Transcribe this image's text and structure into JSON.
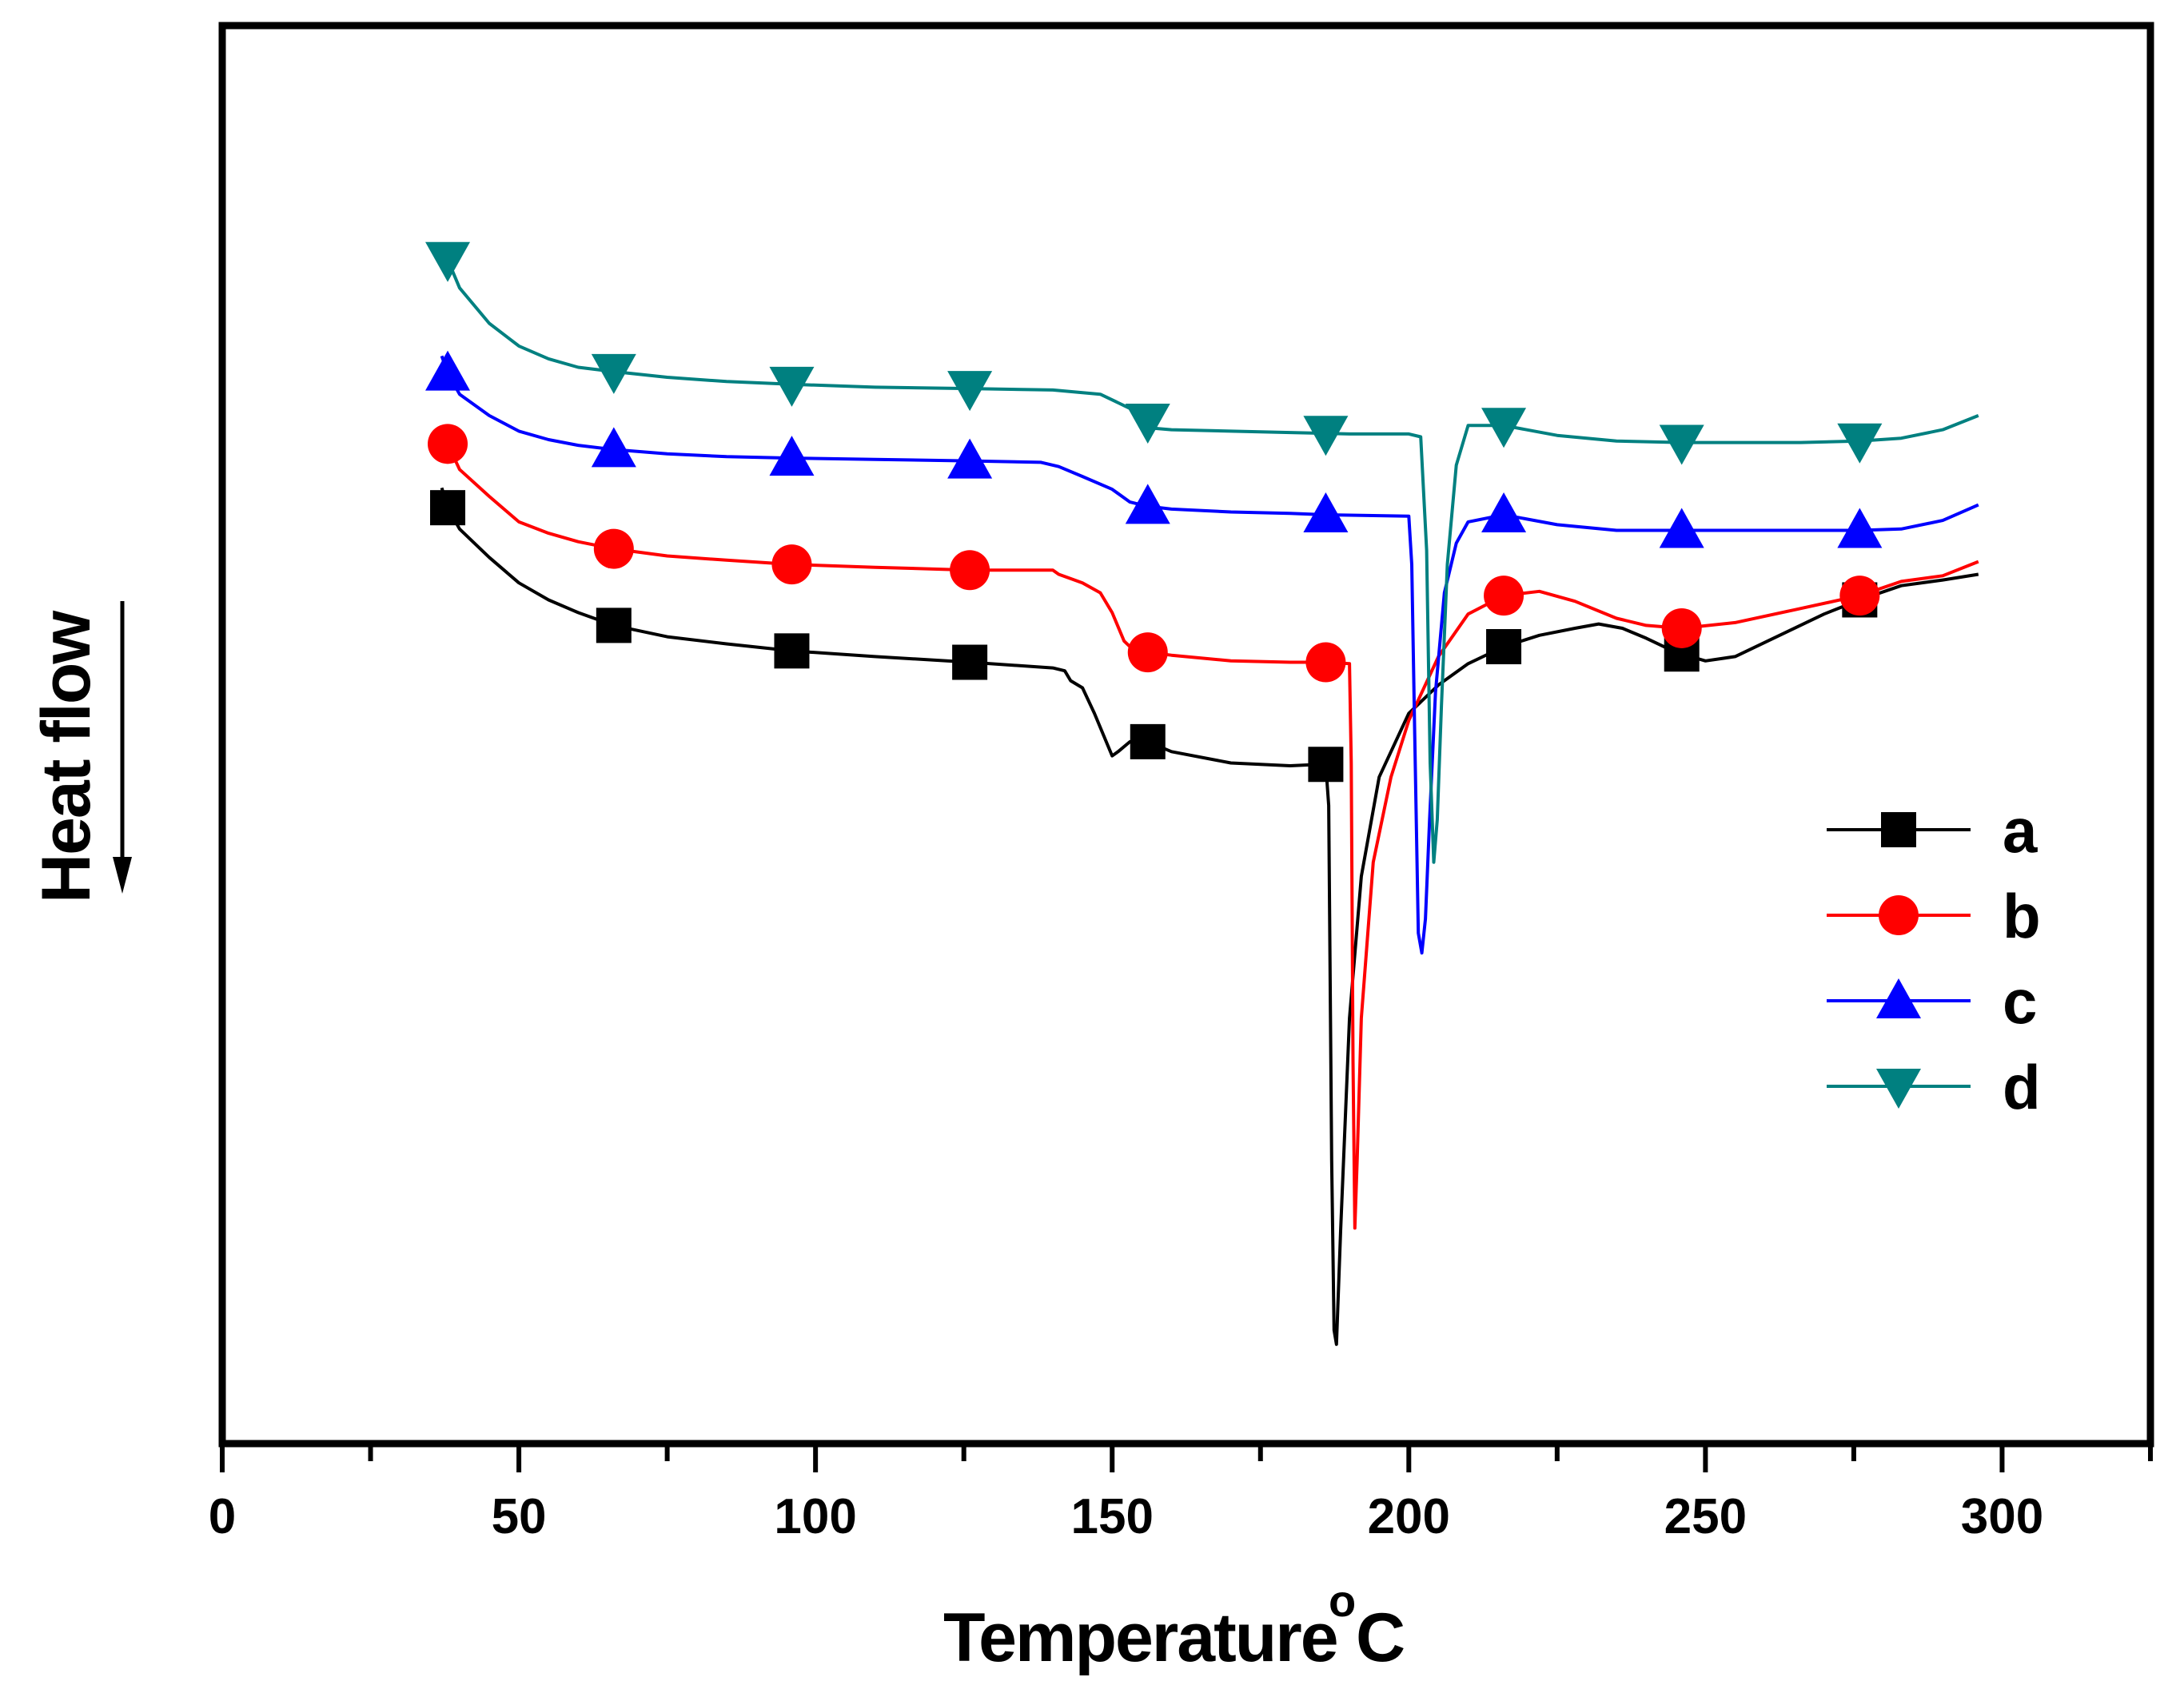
{
  "chart_data": {
    "type": "line",
    "title": "",
    "xlabel": "Temperature",
    "xlabel_unit": "°C",
    "xlabel_unit_sup": "o",
    "xlabel_unit_main": "C",
    "ylabel": "Heat flow",
    "ylabel_arrow": "down",
    "xlim": [
      0,
      325
    ],
    "ylim": [
      0,
      100
    ],
    "y_ticks_shown": false,
    "x_ticks": [
      0,
      50,
      100,
      150,
      200,
      250,
      300
    ],
    "x_tick_labels": [
      "0",
      "50",
      "100",
      "150",
      "200",
      "250",
      "300"
    ],
    "x_minor_ticks": [
      25,
      75,
      125,
      175,
      225,
      275,
      325
    ],
    "grid": false,
    "legend_position": "right",
    "series": [
      {
        "name": "a",
        "color": "#000000",
        "marker": "square",
        "points": [
          [
            37,
            67.4
          ],
          [
            38,
            66
          ],
          [
            40,
            64.5
          ],
          [
            45,
            62.5
          ],
          [
            50,
            60.7
          ],
          [
            55,
            59.5
          ],
          [
            60,
            58.6
          ],
          [
            66,
            57.7
          ],
          [
            75,
            56.9
          ],
          [
            85,
            56.4
          ],
          [
            96,
            55.9
          ],
          [
            110,
            55.5
          ],
          [
            126,
            55.1
          ],
          [
            140,
            54.7
          ],
          [
            142,
            54.5
          ],
          [
            143,
            53.8
          ],
          [
            145,
            53.3
          ],
          [
            147,
            51.5
          ],
          [
            149,
            49.5
          ],
          [
            150,
            48.5
          ],
          [
            151,
            48.8
          ],
          [
            153,
            49.5
          ],
          [
            156,
            49.5
          ],
          [
            160,
            48.8
          ],
          [
            170,
            48
          ],
          [
            180,
            47.8
          ],
          [
            185,
            47.9
          ],
          [
            186,
            47.9
          ],
          [
            186.5,
            45
          ],
          [
            187,
            20
          ],
          [
            187.4,
            8
          ],
          [
            187.8,
            7
          ],
          [
            188.5,
            15
          ],
          [
            190,
            30
          ],
          [
            192,
            40
          ],
          [
            195,
            47
          ],
          [
            200,
            51.5
          ],
          [
            205,
            53.5
          ],
          [
            210,
            55
          ],
          [
            216,
            56.2
          ],
          [
            222,
            57
          ],
          [
            228,
            57.5
          ],
          [
            232,
            57.8
          ],
          [
            236,
            57.5
          ],
          [
            240,
            56.8
          ],
          [
            245,
            55.8
          ],
          [
            250,
            55.2
          ],
          [
            255,
            55.5
          ],
          [
            260,
            56.5
          ],
          [
            270,
            58.5
          ],
          [
            276,
            59.5
          ],
          [
            283,
            60.5
          ],
          [
            290,
            60.9
          ],
          [
            296,
            61.3
          ]
        ],
        "marker_x": [
          38,
          66,
          96,
          126,
          156,
          186,
          216,
          246,
          276
        ]
      },
      {
        "name": "b",
        "color": "#ff0000",
        "marker": "circle",
        "points": [
          [
            37,
            71.8
          ],
          [
            38,
            70.5
          ],
          [
            40,
            68.7
          ],
          [
            45,
            66.8
          ],
          [
            50,
            65
          ],
          [
            55,
            64.2
          ],
          [
            60,
            63.6
          ],
          [
            66,
            63.1
          ],
          [
            75,
            62.6
          ],
          [
            85,
            62.3
          ],
          [
            96,
            62
          ],
          [
            110,
            61.8
          ],
          [
            126,
            61.6
          ],
          [
            140,
            61.6
          ],
          [
            141,
            61.3
          ],
          [
            143,
            61
          ],
          [
            145,
            60.7
          ],
          [
            148,
            60
          ],
          [
            150,
            58.6
          ],
          [
            152,
            56.6
          ],
          [
            154,
            55.8
          ],
          [
            156,
            55.8
          ],
          [
            160,
            55.6
          ],
          [
            170,
            55.2
          ],
          [
            180,
            55.1
          ],
          [
            186,
            55.1
          ],
          [
            190,
            55
          ],
          [
            190.3,
            48
          ],
          [
            190.6,
            27
          ],
          [
            190.9,
            15.2
          ],
          [
            191.3,
            20
          ],
          [
            192,
            30
          ],
          [
            194,
            41
          ],
          [
            197,
            47
          ],
          [
            200,
            51
          ],
          [
            205,
            55.5
          ],
          [
            210,
            58.5
          ],
          [
            216,
            59.8
          ],
          [
            222,
            60.1
          ],
          [
            228,
            59.4
          ],
          [
            235,
            58.2
          ],
          [
            240,
            57.7
          ],
          [
            246,
            57.5
          ],
          [
            255,
            57.9
          ],
          [
            265,
            58.8
          ],
          [
            276,
            59.8
          ],
          [
            283,
            60.8
          ],
          [
            290,
            61.2
          ],
          [
            296,
            62.2
          ]
        ],
        "marker_x": [
          38,
          66,
          96,
          126,
          156,
          186,
          216,
          246,
          276
        ]
      },
      {
        "name": "c",
        "color": "#0000ff",
        "marker": "triangle-up",
        "points": [
          [
            37,
            76.7
          ],
          [
            38,
            75.5
          ],
          [
            40,
            74
          ],
          [
            45,
            72.5
          ],
          [
            50,
            71.4
          ],
          [
            55,
            70.8
          ],
          [
            60,
            70.4
          ],
          [
            66,
            70.1
          ],
          [
            75,
            69.8
          ],
          [
            85,
            69.6
          ],
          [
            96,
            69.5
          ],
          [
            110,
            69.4
          ],
          [
            126,
            69.3
          ],
          [
            138,
            69.2
          ],
          [
            141,
            68.9
          ],
          [
            145,
            68.2
          ],
          [
            150,
            67.3
          ],
          [
            153,
            66.4
          ],
          [
            156,
            66.1
          ],
          [
            160,
            65.9
          ],
          [
            170,
            65.7
          ],
          [
            180,
            65.6
          ],
          [
            186,
            65.5
          ],
          [
            200,
            65.4
          ],
          [
            200.5,
            62
          ],
          [
            201,
            50
          ],
          [
            201.6,
            36
          ],
          [
            202.2,
            34.6
          ],
          [
            202.8,
            37
          ],
          [
            203.5,
            44
          ],
          [
            204.5,
            53
          ],
          [
            206,
            60
          ],
          [
            208,
            63.5
          ],
          [
            210,
            65
          ],
          [
            216,
            65.5
          ],
          [
            225,
            64.8
          ],
          [
            235,
            64.4
          ],
          [
            246,
            64.4
          ],
          [
            256,
            64.4
          ],
          [
            266,
            64.4
          ],
          [
            276,
            64.4
          ],
          [
            283,
            64.5
          ],
          [
            290,
            65.1
          ],
          [
            296,
            66.2
          ]
        ],
        "marker_x": [
          38,
          66,
          96,
          126,
          156,
          186,
          216,
          246,
          276
        ]
      },
      {
        "name": "d",
        "color": "#008080",
        "marker": "triangle-down",
        "points": [
          [
            37,
            84.2
          ],
          [
            38,
            83.5
          ],
          [
            40,
            81.5
          ],
          [
            45,
            79
          ],
          [
            50,
            77.4
          ],
          [
            55,
            76.5
          ],
          [
            60,
            75.9
          ],
          [
            66,
            75.6
          ],
          [
            75,
            75.2
          ],
          [
            85,
            74.9
          ],
          [
            96,
            74.7
          ],
          [
            110,
            74.5
          ],
          [
            126,
            74.4
          ],
          [
            140,
            74.3
          ],
          [
            148,
            74
          ],
          [
            152,
            73.2
          ],
          [
            155,
            72.6
          ],
          [
            157,
            71.6
          ],
          [
            160,
            71.5
          ],
          [
            170,
            71.4
          ],
          [
            180,
            71.3
          ],
          [
            190,
            71.2
          ],
          [
            200,
            71.2
          ],
          [
            202,
            71
          ],
          [
            203,
            63
          ],
          [
            203.6,
            48
          ],
          [
            204.2,
            41
          ],
          [
            204.8,
            44
          ],
          [
            205.5,
            52
          ],
          [
            206.5,
            62
          ],
          [
            208,
            69
          ],
          [
            210,
            71.8
          ],
          [
            216,
            71.8
          ],
          [
            225,
            71.1
          ],
          [
            235,
            70.7
          ],
          [
            246,
            70.6
          ],
          [
            256,
            70.6
          ],
          [
            266,
            70.6
          ],
          [
            276,
            70.7
          ],
          [
            283,
            70.9
          ],
          [
            290,
            71.5
          ],
          [
            296,
            72.5
          ]
        ],
        "marker_x": [
          38,
          66,
          96,
          126,
          156,
          186,
          216,
          246,
          276
        ]
      }
    ]
  }
}
